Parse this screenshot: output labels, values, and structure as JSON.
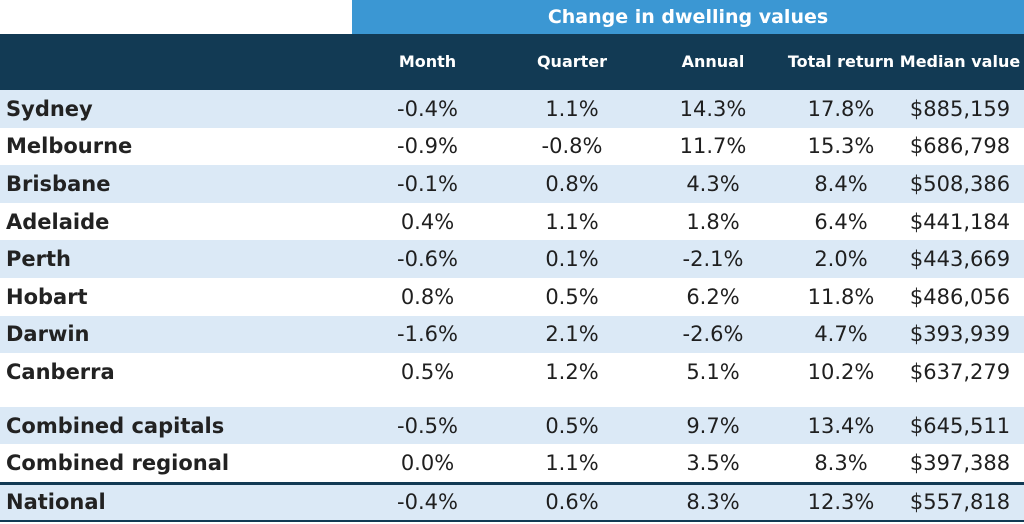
{
  "chart_data": {
    "type": "table",
    "title": "Change in dwelling values",
    "columns": [
      "Month",
      "Quarter",
      "Annual",
      "Total return",
      "Median value"
    ],
    "rows": [
      {
        "region": "Sydney",
        "month": "-0.4%",
        "quarter": "1.1%",
        "annual": "14.3%",
        "total_return": "17.8%",
        "median_value": "$885,159"
      },
      {
        "region": "Melbourne",
        "month": "-0.9%",
        "quarter": "-0.8%",
        "annual": "11.7%",
        "total_return": "15.3%",
        "median_value": "$686,798"
      },
      {
        "region": "Brisbane",
        "month": "-0.1%",
        "quarter": "0.8%",
        "annual": "4.3%",
        "total_return": "8.4%",
        "median_value": "$508,386"
      },
      {
        "region": "Adelaide",
        "month": "0.4%",
        "quarter": "1.1%",
        "annual": "1.8%",
        "total_return": "6.4%",
        "median_value": "$441,184"
      },
      {
        "region": "Perth",
        "month": "-0.6%",
        "quarter": "0.1%",
        "annual": "-2.1%",
        "total_return": "2.0%",
        "median_value": "$443,669"
      },
      {
        "region": "Hobart",
        "month": "0.8%",
        "quarter": "0.5%",
        "annual": "6.2%",
        "total_return": "11.8%",
        "median_value": "$486,056"
      },
      {
        "region": "Darwin",
        "month": "-1.6%",
        "quarter": "2.1%",
        "annual": "-2.6%",
        "total_return": "4.7%",
        "median_value": "$393,939"
      },
      {
        "region": "Canberra",
        "month": "0.5%",
        "quarter": "1.2%",
        "annual": "5.1%",
        "total_return": "10.2%",
        "median_value": "$637,279"
      },
      {
        "region": "Combined capitals",
        "month": "-0.5%",
        "quarter": "0.5%",
        "annual": "9.7%",
        "total_return": "13.4%",
        "median_value": "$645,511"
      },
      {
        "region": "Combined regional",
        "month": "0.0%",
        "quarter": "1.1%",
        "annual": "3.5%",
        "total_return": "8.3%",
        "median_value": "$397,388"
      },
      {
        "region": "National",
        "month": "-0.4%",
        "quarter": "0.6%",
        "annual": "8.3%",
        "total_return": "12.3%",
        "median_value": "$557,818"
      }
    ],
    "colors": {
      "banner": "#3b97d3",
      "header": "#123a54",
      "alt_row": "#dbe9f6",
      "row": "#ffffff"
    }
  }
}
